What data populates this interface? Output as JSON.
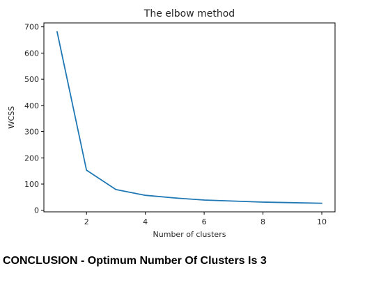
{
  "chart_data": {
    "type": "line",
    "title": "The elbow method",
    "xlabel": "Number of clusters",
    "ylabel": "WCSS",
    "x": [
      1,
      2,
      3,
      4,
      5,
      6,
      7,
      8,
      9,
      10
    ],
    "xlim": [
      0.55,
      10.45
    ],
    "ylim": [
      -6,
      715
    ],
    "xticks": [
      2,
      4,
      6,
      8,
      10
    ],
    "yticks": [
      0,
      100,
      200,
      300,
      400,
      500,
      600,
      700
    ],
    "series": [
      {
        "values": [
          681,
          153,
          79,
          57,
          47,
          39,
          35,
          31,
          29,
          27
        ],
        "color": "#1f77b4"
      }
    ],
    "grid": false,
    "legend": "none"
  },
  "conclusion": {
    "text": "CONCLUSION - Optimum Number Of Clusters Is 3"
  }
}
